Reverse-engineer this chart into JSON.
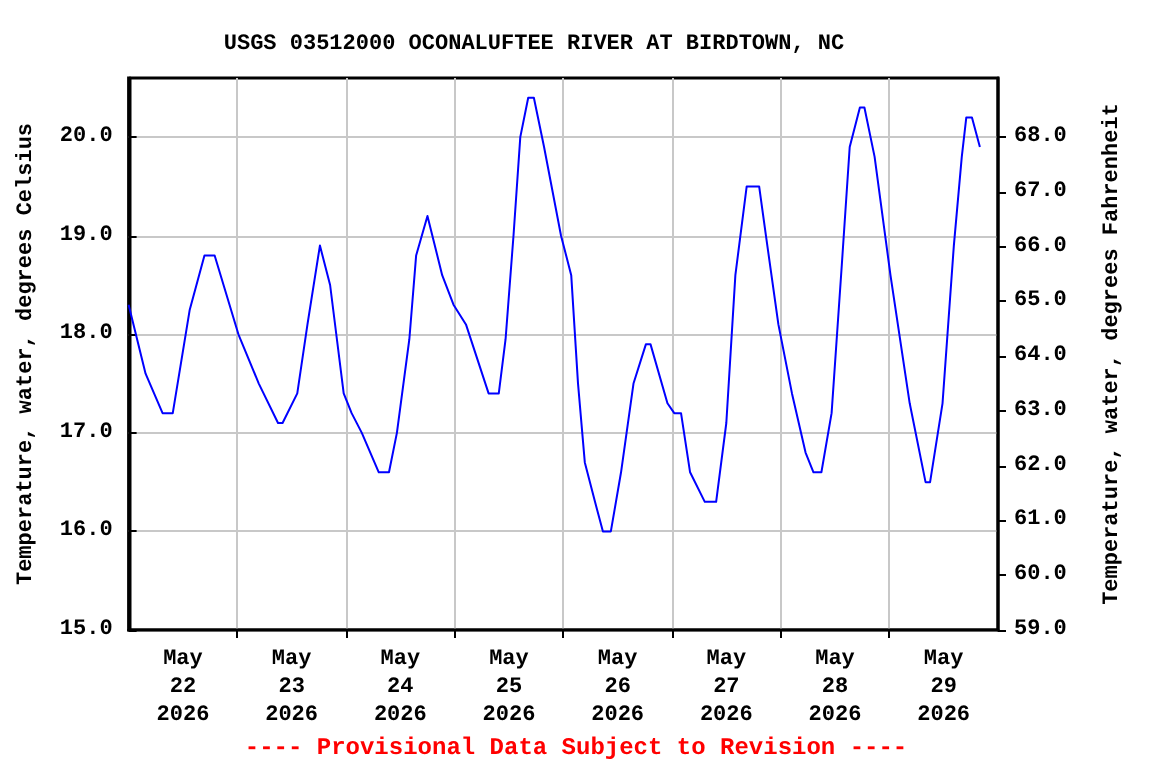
{
  "chart_data": {
    "type": "line",
    "title": "USGS 03512000 OCONALUFTEE RIVER AT BIRDTOWN, NC",
    "ylabel": "Temperature, water, degrees Celsius",
    "y2label": "Temperature, water, degrees Fahrenheit",
    "annotations": [
      "---- Provisional Data Subject to Revision ----"
    ],
    "x": [
      "2026-05-22T00:00",
      "2026-05-22T03:45",
      "2026-05-22T07:30",
      "2026-05-22T09:45",
      "2026-05-22T13:30",
      "2026-05-22T16:45",
      "2026-05-22T19:00",
      "2026-05-23T00:15",
      "2026-05-23T04:45",
      "2026-05-23T09:00",
      "2026-05-23T10:00",
      "2026-05-23T13:15",
      "2026-05-23T15:30",
      "2026-05-23T18:15",
      "2026-05-23T20:30",
      "2026-05-23T23:30",
      "2026-05-24T01:15",
      "2026-05-24T03:30",
      "2026-05-24T07:15",
      "2026-05-24T09:30",
      "2026-05-24T11:15",
      "2026-05-24T14:00",
      "2026-05-24T15:30",
      "2026-05-24T18:00",
      "2026-05-24T21:15",
      "2026-05-24T23:45",
      "2026-05-25T02:30",
      "2026-05-25T07:30",
      "2026-05-25T09:45",
      "2026-05-25T11:15",
      "2026-05-25T13:00",
      "2026-05-25T14:30",
      "2026-05-25T16:15",
      "2026-05-25T17:30",
      "2026-05-25T19:45",
      "2026-05-25T23:30",
      "2026-05-26T01:45",
      "2026-05-26T03:15",
      "2026-05-26T04:45",
      "2026-05-26T07:00",
      "2026-05-26T08:45",
      "2026-05-26T10:30",
      "2026-05-26T12:45",
      "2026-05-26T15:30",
      "2026-05-26T18:15",
      "2026-05-26T19:15",
      "2026-05-26T23:00",
      "2026-05-27T00:30",
      "2026-05-27T02:00",
      "2026-05-27T04:00",
      "2026-05-27T07:15",
      "2026-05-27T09:45",
      "2026-05-27T12:00",
      "2026-05-27T14:00",
      "2026-05-27T16:30",
      "2026-05-27T19:15",
      "2026-05-27T20:45",
      "2026-05-27T23:30",
      "2026-05-28T02:30",
      "2026-05-28T05:30",
      "2026-05-28T07:15",
      "2026-05-28T09:00",
      "2026-05-28T11:15",
      "2026-05-28T13:30",
      "2026-05-28T15:15",
      "2026-05-28T17:30",
      "2026-05-28T18:30",
      "2026-05-28T20:45",
      "2026-05-29T00:15",
      "2026-05-29T04:30",
      "2026-05-29T08:00",
      "2026-05-29T09:00",
      "2026-05-29T11:45",
      "2026-05-29T14:15",
      "2026-05-29T16:00",
      "2026-05-29T17:00",
      "2026-05-29T18:15",
      "2026-05-29T20:00"
    ],
    "series": [
      {
        "color": "#0000ff",
        "values": [
          18.3,
          17.6,
          17.2,
          17.2,
          18.25,
          18.8,
          18.8,
          18.0,
          17.5,
          17.1,
          17.1,
          17.4,
          18.1,
          18.9,
          18.5,
          17.4,
          17.2,
          17.0,
          16.6,
          16.6,
          17.0,
          17.95,
          18.8,
          19.2,
          18.6,
          18.3,
          18.1,
          17.4,
          17.4,
          17.95,
          19.0,
          20.0,
          20.4,
          20.4,
          19.9,
          19.0,
          18.6,
          17.5,
          16.7,
          16.3,
          16.0,
          16.0,
          16.6,
          17.5,
          17.9,
          17.9,
          17.3,
          17.2,
          17.2,
          16.6,
          16.3,
          16.3,
          17.1,
          18.6,
          19.5,
          19.5,
          19.0,
          18.1,
          17.4,
          16.8,
          16.6,
          16.6,
          17.2,
          18.7,
          19.9,
          20.3,
          20.3,
          19.8,
          18.6,
          17.3,
          16.5,
          16.5,
          17.3,
          18.9,
          19.8,
          20.2,
          20.2,
          19.9
        ]
      }
    ],
    "xlim": [
      "2026-05-22T00:00",
      "2026-05-30T00:00"
    ],
    "xticks": [
      {
        "value": "2026-05-22T12:00",
        "label": "May\n22\n2026"
      },
      {
        "value": "2026-05-23T00:00",
        "label": null
      },
      {
        "value": "2026-05-23T12:00",
        "label": "May\n23\n2026"
      },
      {
        "value": "2026-05-24T00:00",
        "label": null
      },
      {
        "value": "2026-05-24T12:00",
        "label": "May\n24\n2026"
      },
      {
        "value": "2026-05-25T00:00",
        "label": null
      },
      {
        "value": "2026-05-25T12:00",
        "label": "May\n25\n2026"
      },
      {
        "value": "2026-05-26T00:00",
        "label": null
      },
      {
        "value": "2026-05-26T12:00",
        "label": "May\n26\n2026"
      },
      {
        "value": "2026-05-27T00:00",
        "label": null
      },
      {
        "value": "2026-05-27T12:00",
        "label": "May\n27\n2026"
      },
      {
        "value": "2026-05-28T00:00",
        "label": null
      },
      {
        "value": "2026-05-28T12:00",
        "label": "May\n28\n2026"
      },
      {
        "value": "2026-05-29T00:00",
        "label": null
      },
      {
        "value": "2026-05-29T12:00",
        "label": "May\n29\n2026"
      }
    ],
    "ylim": [
      15,
      20.6
    ],
    "yticks": [
      {
        "value": 15,
        "label": "15.0"
      },
      {
        "value": 16,
        "label": "16.0"
      },
      {
        "value": 17,
        "label": "17.0"
      },
      {
        "value": 18,
        "label": "18.0"
      },
      {
        "value": 19,
        "label": "19.0"
      },
      {
        "value": 20,
        "label": "20.0"
      }
    ],
    "y2lim": [
      59,
      69.08
    ],
    "y2ticks": [
      {
        "value": 59,
        "label": "59.0"
      },
      {
        "value": 60,
        "label": "60.0"
      },
      {
        "value": 61,
        "label": "61.0"
      },
      {
        "value": 62,
        "label": "62.0"
      },
      {
        "value": 63,
        "label": "63.0"
      },
      {
        "value": 64,
        "label": "64.0"
      },
      {
        "value": 65,
        "label": "65.0"
      },
      {
        "value": 66,
        "label": "66.0"
      },
      {
        "value": 67,
        "label": "67.0"
      },
      {
        "value": 68,
        "label": "68.0"
      }
    ],
    "grid": true,
    "marker": "none",
    "line_style": "solid"
  }
}
